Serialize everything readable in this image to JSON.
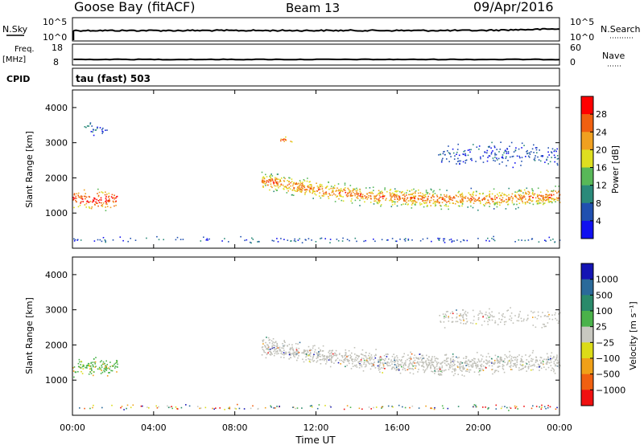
{
  "header": {
    "station": "Goose Bay (fitACF)",
    "beam": "Beam 13",
    "date": "09/Apr/2016"
  },
  "panels": {
    "nsky": {
      "label": "N.Sky",
      "ticks": [
        "10^5",
        "10^0"
      ],
      "right_label": "N.Search",
      "right_ticks": [
        "10^5",
        "10^0"
      ]
    },
    "freq": {
      "label_line1": "Freq.",
      "label_line2": "[MHz]",
      "ticks": [
        "18",
        "8"
      ],
      "right_label": "Nave",
      "right_ticks": [
        "60",
        "0"
      ]
    },
    "cpid": {
      "label": "CPID",
      "text": "tau (fast) 503"
    }
  },
  "colors": {
    "power_scale": [
      "#1010f0",
      "#2050b0",
      "#2a8a7a",
      "#58b858",
      "#dede20",
      "#f0a020",
      "#f06010",
      "#ff0000"
    ],
    "velocity_scale": [
      "#1414b4",
      "#2a6a9a",
      "#2a8a6a",
      "#4ab24a",
      "#c8c8c0",
      "#dcdc18",
      "#f0a018",
      "#f06010",
      "#f01010"
    ],
    "gray_scatter": "#c0c0b8"
  },
  "chart_data": [
    {
      "type": "heatmap",
      "name": "power",
      "ylabel": "Slant Range [km]",
      "y_ticks": [
        1000,
        2000,
        3000,
        4000
      ],
      "ylim": [
        0,
        4500
      ],
      "colorbar_label": "Power [dB]",
      "colorbar_ticks": [
        4,
        8,
        12,
        16,
        20,
        24,
        28
      ],
      "colorbar_range": [
        0,
        32
      ],
      "bands": [
        {
          "t_start": 0.0,
          "t_end": 2.2,
          "r_center": 1400,
          "r_width": 600,
          "level": "high"
        },
        {
          "t_start": 9.3,
          "t_end": 24.0,
          "r_center": 1500,
          "r_width": 650,
          "level": "medium"
        },
        {
          "t_start": 10.0,
          "t_end": 10.8,
          "r_center": 3100,
          "r_width": 250,
          "level": "medium"
        },
        {
          "t_start": 18.0,
          "t_end": 24.0,
          "r_center": 2700,
          "r_width": 800,
          "level": "low"
        },
        {
          "t_start": 0.5,
          "t_end": 1.7,
          "r_center": 3400,
          "r_width": 500,
          "level": "low"
        },
        {
          "t_start": 0.0,
          "t_end": 24.0,
          "r_center": 250,
          "r_width": 200,
          "level": "low"
        }
      ]
    },
    {
      "type": "heatmap",
      "name": "velocity",
      "ylabel": "Slant Range [km]",
      "y_ticks": [
        1000,
        2000,
        3000,
        4000
      ],
      "ylim": [
        0,
        4500
      ],
      "colorbar_label": "Velocity [m s⁻¹]",
      "colorbar_ticks": [
        "1000",
        "500",
        "100",
        "25",
        "−25",
        "−100",
        "−500",
        "−1000"
      ],
      "bands": [
        {
          "t_start": 0.0,
          "t_end": 2.2,
          "r_center": 1400,
          "r_width": 600,
          "class": "positive"
        },
        {
          "t_start": 9.3,
          "t_end": 24.0,
          "r_center": 1550,
          "r_width": 700,
          "class": "near-zero"
        },
        {
          "t_start": 18.0,
          "t_end": 24.0,
          "r_center": 2800,
          "r_width": 700,
          "class": "near-zero"
        },
        {
          "t_start": 0.0,
          "t_end": 24.0,
          "r_center": 250,
          "r_width": 200,
          "class": "mixed"
        }
      ]
    }
  ],
  "x_axis": {
    "ticks": [
      "00:00",
      "04:00",
      "08:00",
      "12:00",
      "16:00",
      "20:00",
      "00:00"
    ],
    "label": "Time UT",
    "range_hours": [
      0,
      24
    ]
  }
}
